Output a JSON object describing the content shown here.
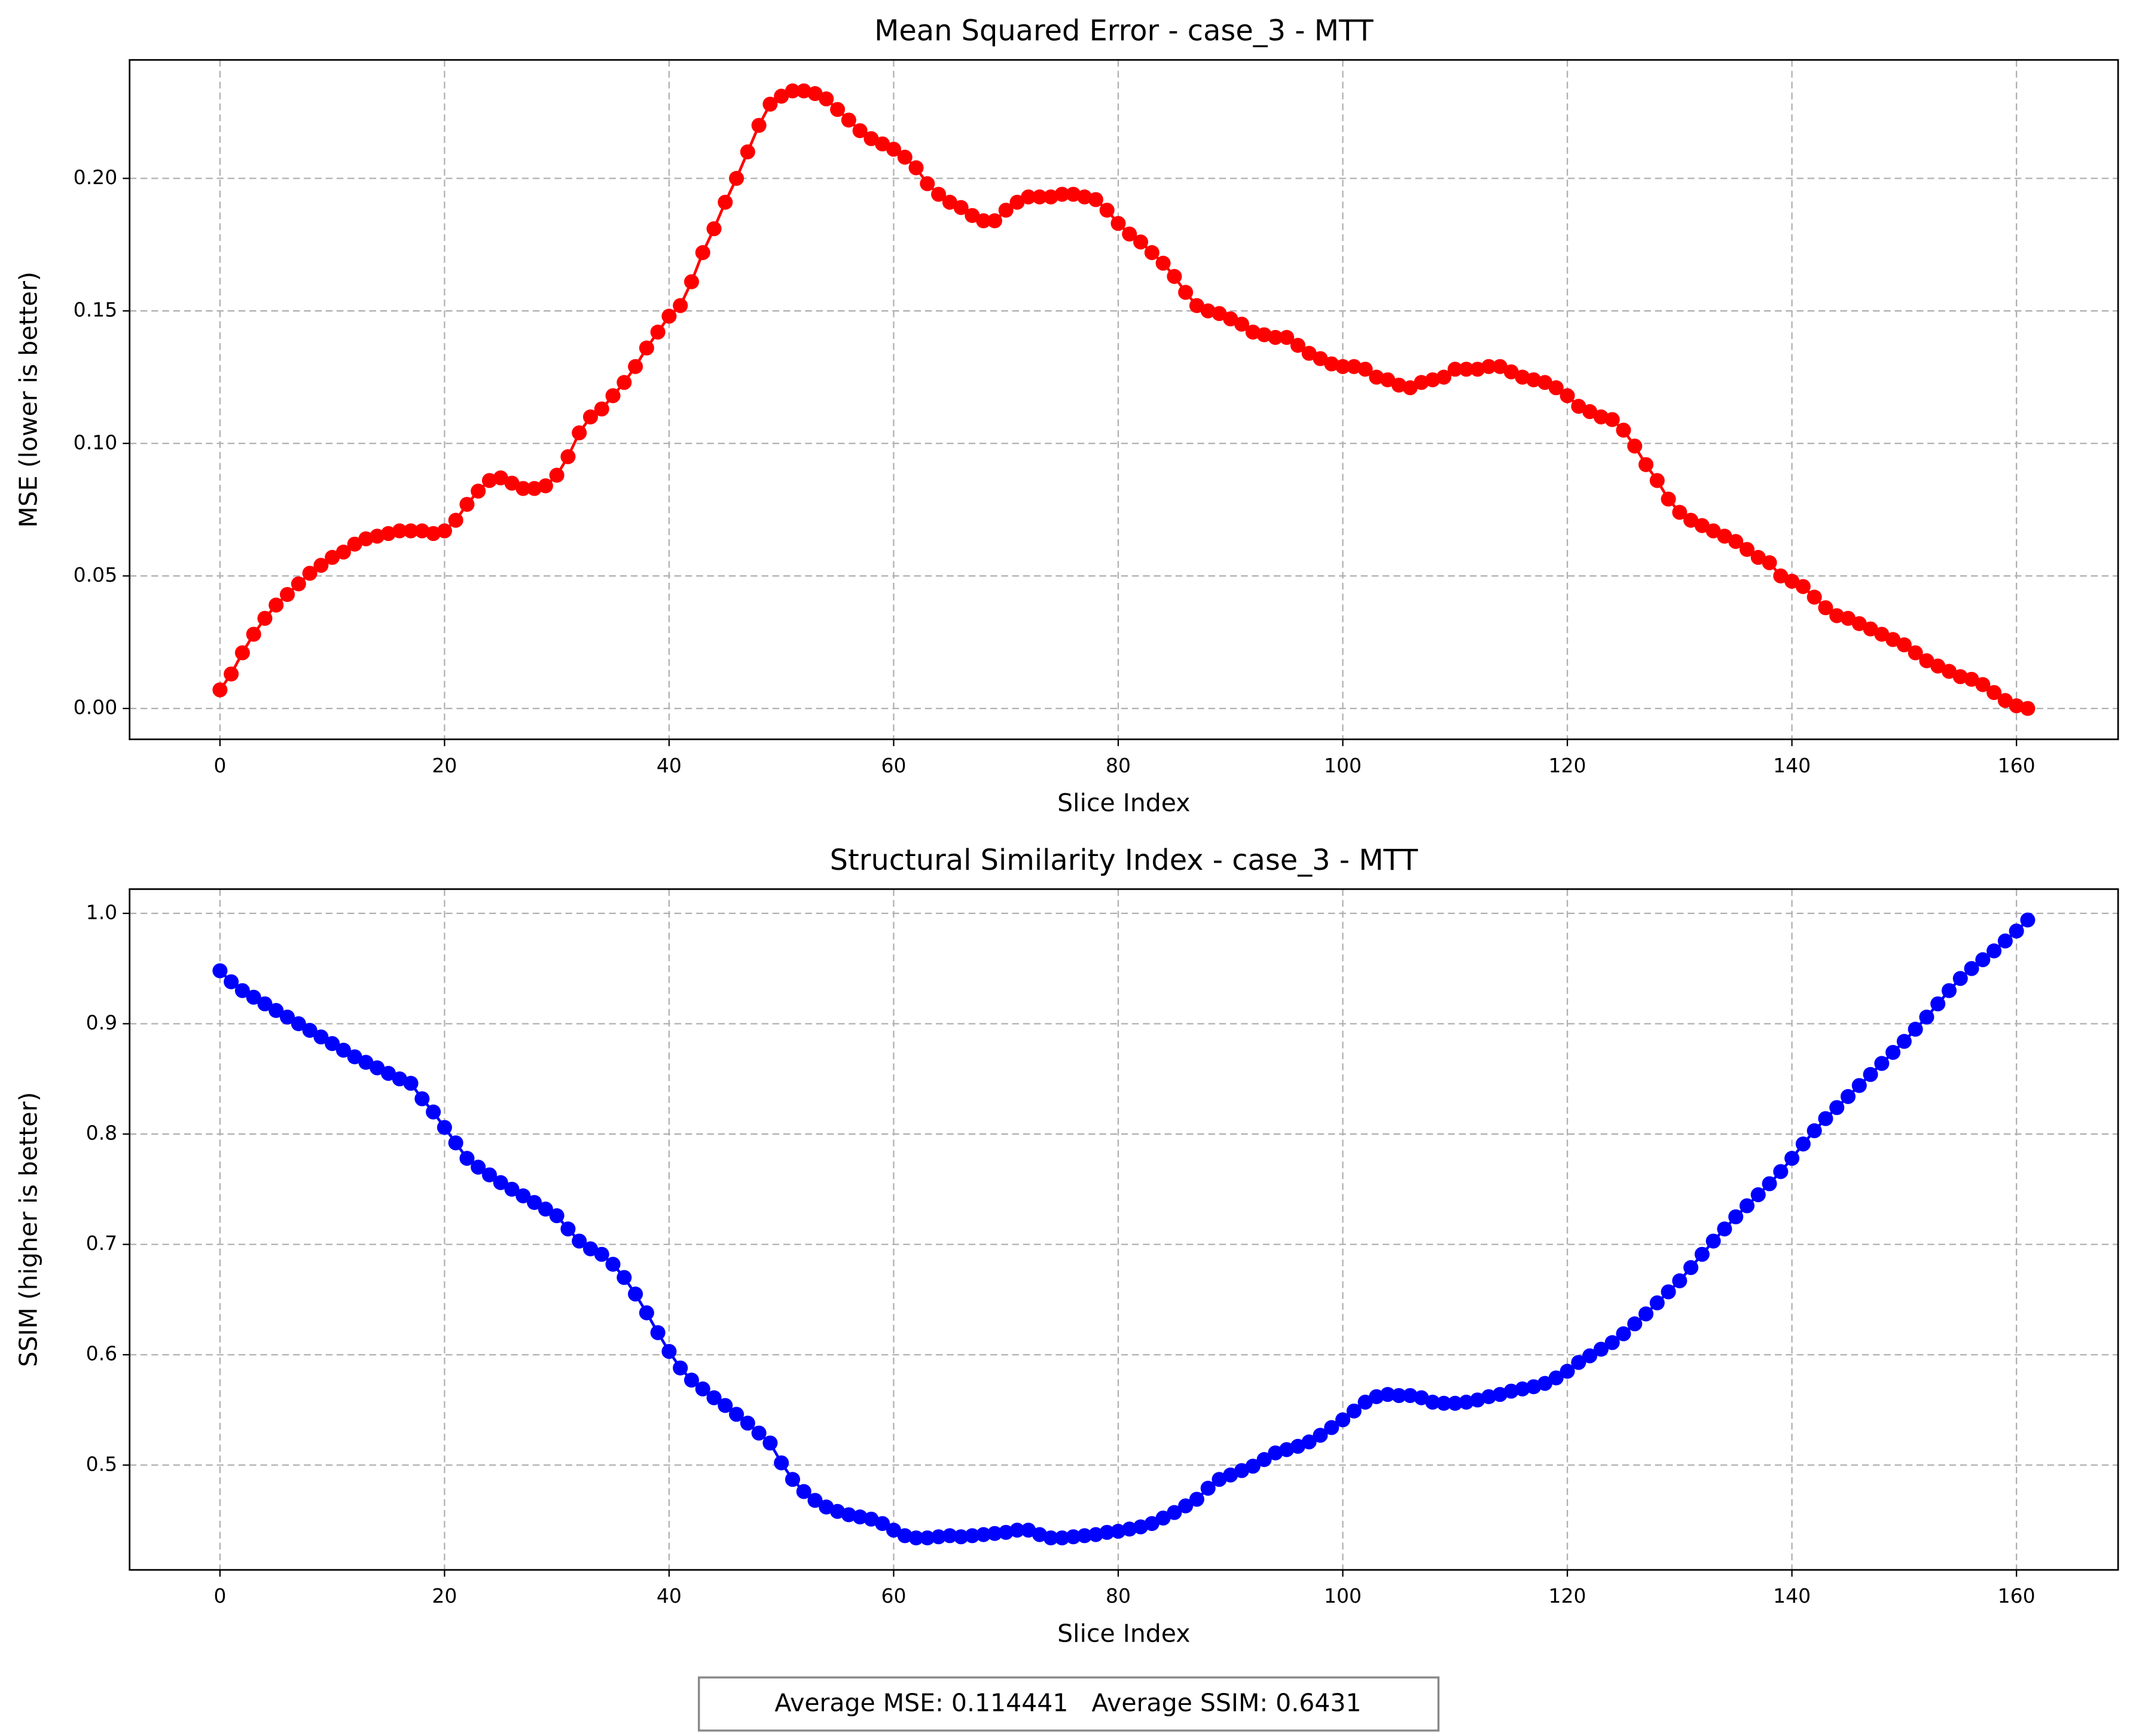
{
  "chart_data": [
    {
      "type": "line",
      "title": "Mean Squared Error - case_3 - MTT",
      "xlabel": "Slice Index",
      "ylabel": "MSE (lower is better)",
      "x": [
        0,
        1,
        2,
        3,
        4,
        5,
        6,
        7,
        8,
        9,
        10,
        11,
        12,
        13,
        14,
        15,
        16,
        17,
        18,
        19,
        20,
        21,
        22,
        23,
        24,
        25,
        26,
        27,
        28,
        29,
        30,
        31,
        32,
        33,
        34,
        35,
        36,
        37,
        38,
        39,
        40,
        41,
        42,
        43,
        44,
        45,
        46,
        47,
        48,
        49,
        50,
        51,
        52,
        53,
        54,
        55,
        56,
        57,
        58,
        59,
        60,
        61,
        62,
        63,
        64,
        65,
        66,
        67,
        68,
        69,
        70,
        71,
        72,
        73,
        74,
        75,
        76,
        77,
        78,
        79,
        80,
        81,
        82,
        83,
        84,
        85,
        86,
        87,
        88,
        89,
        90,
        91,
        92,
        93,
        94,
        95,
        96,
        97,
        98,
        99,
        100,
        101,
        102,
        103,
        104,
        105,
        106,
        107,
        108,
        109,
        110,
        111,
        112,
        113,
        114,
        115,
        116,
        117,
        118,
        119,
        120,
        121,
        122,
        123,
        124,
        125,
        126,
        127,
        128,
        129,
        130,
        131,
        132,
        133,
        134,
        135,
        136,
        137,
        138,
        139,
        140,
        141,
        142,
        143,
        144,
        145,
        146,
        147,
        148,
        149,
        150,
        151,
        152,
        153,
        154,
        155,
        156,
        157,
        158,
        159,
        160,
        161
      ],
      "series": [
        {
          "color": "#ff0000",
          "values": [
            0.007,
            0.013,
            0.021,
            0.028,
            0.034,
            0.039,
            0.043,
            0.047,
            0.051,
            0.054,
            0.057,
            0.059,
            0.062,
            0.064,
            0.065,
            0.066,
            0.067,
            0.067,
            0.067,
            0.066,
            0.067,
            0.071,
            0.077,
            0.082,
            0.086,
            0.087,
            0.085,
            0.083,
            0.083,
            0.084,
            0.088,
            0.095,
            0.104,
            0.11,
            0.113,
            0.118,
            0.123,
            0.129,
            0.136,
            0.142,
            0.148,
            0.152,
            0.161,
            0.172,
            0.181,
            0.191,
            0.2,
            0.21,
            0.22,
            0.228,
            0.231,
            0.233,
            0.233,
            0.232,
            0.23,
            0.226,
            0.222,
            0.218,
            0.215,
            0.213,
            0.211,
            0.208,
            0.204,
            0.198,
            0.194,
            0.191,
            0.189,
            0.186,
            0.184,
            0.184,
            0.188,
            0.191,
            0.193,
            0.193,
            0.193,
            0.194,
            0.194,
            0.193,
            0.192,
            0.188,
            0.183,
            0.179,
            0.176,
            0.172,
            0.168,
            0.163,
            0.157,
            0.152,
            0.15,
            0.149,
            0.147,
            0.145,
            0.142,
            0.141,
            0.14,
            0.14,
            0.137,
            0.134,
            0.132,
            0.13,
            0.129,
            0.129,
            0.128,
            0.125,
            0.124,
            0.122,
            0.121,
            0.123,
            0.124,
            0.125,
            0.128,
            0.128,
            0.128,
            0.129,
            0.129,
            0.127,
            0.125,
            0.124,
            0.123,
            0.121,
            0.118,
            0.114,
            0.112,
            0.11,
            0.109,
            0.105,
            0.099,
            0.092,
            0.086,
            0.079,
            0.074,
            0.071,
            0.069,
            0.067,
            0.065,
            0.063,
            0.06,
            0.057,
            0.055,
            0.05,
            0.048,
            0.046,
            0.042,
            0.038,
            0.035,
            0.034,
            0.032,
            0.03,
            0.028,
            0.026,
            0.024,
            0.021,
            0.018,
            0.016,
            0.014,
            0.012,
            0.011,
            0.009,
            0.006,
            0.003,
            0.001,
            0.0
          ]
        }
      ],
      "xlim": [
        -8.05,
        169.05
      ],
      "xticks": [
        0,
        20,
        40,
        60,
        80,
        100,
        120,
        140,
        160
      ],
      "ylim": [
        -0.01165,
        0.2447
      ],
      "yticks": [
        {
          "value": 0,
          "label": "0.00"
        },
        0.05,
        {
          "value": 0.1,
          "label": "0.10"
        },
        0.15,
        {
          "value": 0.2,
          "label": "0.20"
        }
      ],
      "grid": true
    },
    {
      "type": "line",
      "title": "Structural Similarity Index - case_3 - MTT",
      "xlabel": "Slice Index",
      "ylabel": "SSIM (higher is better)",
      "x": [
        0,
        1,
        2,
        3,
        4,
        5,
        6,
        7,
        8,
        9,
        10,
        11,
        12,
        13,
        14,
        15,
        16,
        17,
        18,
        19,
        20,
        21,
        22,
        23,
        24,
        25,
        26,
        27,
        28,
        29,
        30,
        31,
        32,
        33,
        34,
        35,
        36,
        37,
        38,
        39,
        40,
        41,
        42,
        43,
        44,
        45,
        46,
        47,
        48,
        49,
        50,
        51,
        52,
        53,
        54,
        55,
        56,
        57,
        58,
        59,
        60,
        61,
        62,
        63,
        64,
        65,
        66,
        67,
        68,
        69,
        70,
        71,
        72,
        73,
        74,
        75,
        76,
        77,
        78,
        79,
        80,
        81,
        82,
        83,
        84,
        85,
        86,
        87,
        88,
        89,
        90,
        91,
        92,
        93,
        94,
        95,
        96,
        97,
        98,
        99,
        100,
        101,
        102,
        103,
        104,
        105,
        106,
        107,
        108,
        109,
        110,
        111,
        112,
        113,
        114,
        115,
        116,
        117,
        118,
        119,
        120,
        121,
        122,
        123,
        124,
        125,
        126,
        127,
        128,
        129,
        130,
        131,
        132,
        133,
        134,
        135,
        136,
        137,
        138,
        139,
        140,
        141,
        142,
        143,
        144,
        145,
        146,
        147,
        148,
        149,
        150,
        151,
        152,
        153,
        154,
        155,
        156,
        157,
        158,
        159,
        160,
        161
      ],
      "series": [
        {
          "color": "#0000ff",
          "values": [
            0.948,
            0.938,
            0.93,
            0.924,
            0.918,
            0.912,
            0.906,
            0.9,
            0.894,
            0.888,
            0.882,
            0.876,
            0.87,
            0.865,
            0.86,
            0.855,
            0.85,
            0.846,
            0.832,
            0.82,
            0.806,
            0.792,
            0.778,
            0.77,
            0.763,
            0.756,
            0.75,
            0.744,
            0.738,
            0.732,
            0.726,
            0.714,
            0.703,
            0.696,
            0.691,
            0.682,
            0.67,
            0.655,
            0.638,
            0.62,
            0.603,
            0.588,
            0.577,
            0.569,
            0.561,
            0.554,
            0.546,
            0.538,
            0.529,
            0.52,
            0.502,
            0.487,
            0.476,
            0.468,
            0.462,
            0.458,
            0.455,
            0.453,
            0.451,
            0.447,
            0.441,
            0.436,
            0.434,
            0.434,
            0.435,
            0.436,
            0.435,
            0.436,
            0.437,
            0.438,
            0.439,
            0.441,
            0.441,
            0.437,
            0.434,
            0.434,
            0.435,
            0.436,
            0.437,
            0.439,
            0.44,
            0.442,
            0.444,
            0.447,
            0.452,
            0.457,
            0.463,
            0.469,
            0.479,
            0.487,
            0.491,
            0.495,
            0.499,
            0.505,
            0.511,
            0.514,
            0.517,
            0.521,
            0.527,
            0.534,
            0.541,
            0.549,
            0.557,
            0.562,
            0.564,
            0.563,
            0.563,
            0.561,
            0.557,
            0.556,
            0.556,
            0.557,
            0.559,
            0.562,
            0.564,
            0.567,
            0.569,
            0.571,
            0.574,
            0.579,
            0.585,
            0.593,
            0.599,
            0.605,
            0.611,
            0.619,
            0.628,
            0.637,
            0.647,
            0.657,
            0.667,
            0.679,
            0.691,
            0.703,
            0.714,
            0.725,
            0.735,
            0.745,
            0.755,
            0.766,
            0.778,
            0.791,
            0.803,
            0.814,
            0.824,
            0.834,
            0.844,
            0.854,
            0.864,
            0.874,
            0.884,
            0.895,
            0.906,
            0.918,
            0.93,
            0.941,
            0.95,
            0.958,
            0.966,
            0.975,
            0.984,
            0.994
          ]
        }
      ],
      "xlim": [
        -8.05,
        169.05
      ],
      "xticks": [
        0,
        20,
        40,
        60,
        80,
        100,
        120,
        140,
        160
      ],
      "ylim": [
        0.405,
        1.022
      ],
      "yticks": [
        0.5,
        0.6,
        0.7,
        0.8,
        0.9,
        {
          "value": 1,
          "label": "1.0"
        }
      ],
      "grid": true
    }
  ],
  "annotation": "Average MSE: 0.114441   Average SSIM: 0.6431"
}
